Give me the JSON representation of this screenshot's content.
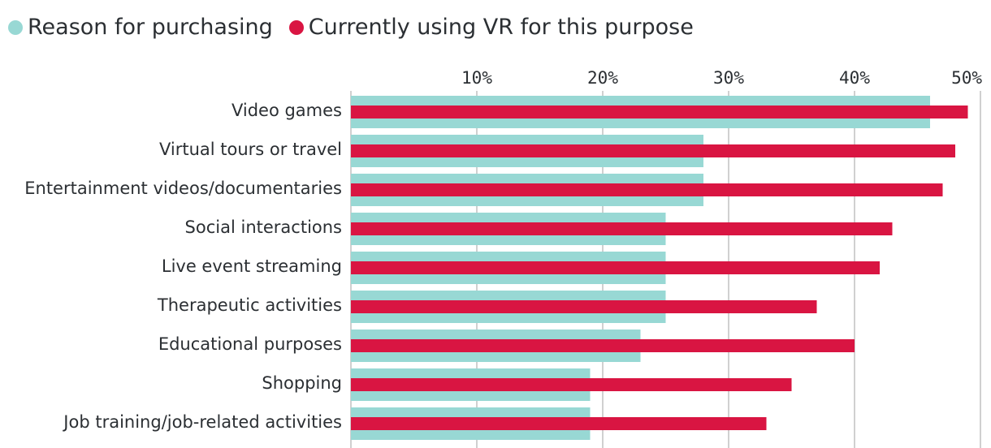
{
  "chart_data": {
    "type": "bar",
    "orientation": "horizontal",
    "title": "",
    "xlabel": "",
    "ylabel": "",
    "xlim": [
      0,
      50
    ],
    "x_ticks": [
      "10%",
      "20%",
      "30%",
      "40%",
      "50%"
    ],
    "grid": true,
    "legend_position": "top-left",
    "categories": [
      "Video games",
      "Virtual tours or travel",
      "Entertainment videos/documentaries",
      "Social interactions",
      "Live event streaming",
      "Therapeutic activities",
      "Educational purposes",
      "Shopping",
      "Job training/job-related activities"
    ],
    "series": [
      {
        "name": "Reason for purchasing",
        "color": "#98d8d4",
        "values": [
          46,
          28,
          28,
          25,
          25,
          25,
          23,
          19,
          19
        ]
      },
      {
        "name": "Currently using VR for this purpose",
        "color": "#d91542",
        "values": [
          49,
          48,
          47,
          43,
          42,
          37,
          40,
          35,
          33
        ]
      }
    ]
  }
}
